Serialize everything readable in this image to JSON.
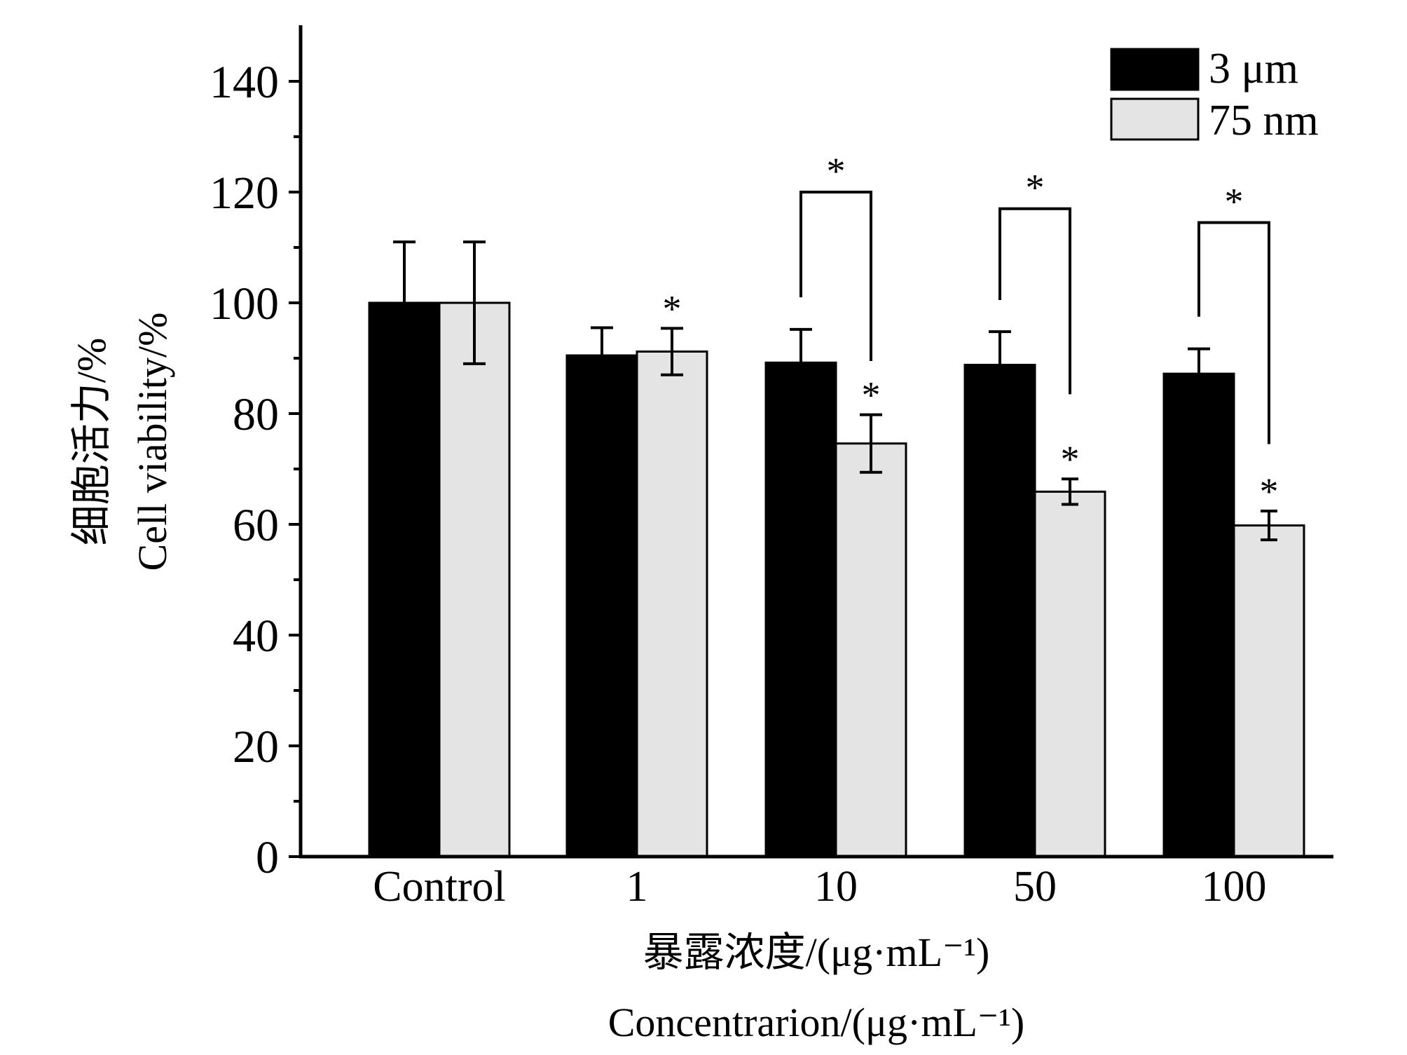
{
  "chart_data": {
    "type": "bar",
    "categories": [
      "Control",
      "1",
      "10",
      "50",
      "100"
    ],
    "series": [
      {
        "name": "3 μm",
        "color": "#000000",
        "values": [
          100,
          90.5,
          89.2,
          88.8,
          87.2
        ],
        "errors": [
          11,
          5,
          6,
          6,
          4.5
        ],
        "stars": [
          "",
          "",
          "",
          "",
          ""
        ]
      },
      {
        "name": "75 nm",
        "color": "#e4e4e4",
        "values": [
          100,
          91.2,
          74.6,
          65.9,
          59.8
        ],
        "errors": [
          11,
          4.2,
          5.2,
          2.3,
          2.6
        ],
        "stars": [
          "",
          "*",
          "*",
          "*",
          "*"
        ]
      }
    ],
    "comparisons": [
      {
        "category_index": 2,
        "label": "*"
      },
      {
        "category_index": 3,
        "label": "*"
      },
      {
        "category_index": 4,
        "label": "*"
      }
    ],
    "ylim": [
      0,
      150
    ],
    "yticks": [
      "0",
      "20",
      "40",
      "60",
      "80",
      "100",
      "120",
      "140"
    ],
    "ylabel_cn": "细胞活力/%",
    "ylabel_en": "Cell viability/%",
    "xlabel_cn": "暴露浓度/(μg·mL⁻¹)",
    "xlabel_en": "Concentrarion/(μg·mL⁻¹)",
    "legend_position": "top-right",
    "grid": false
  }
}
